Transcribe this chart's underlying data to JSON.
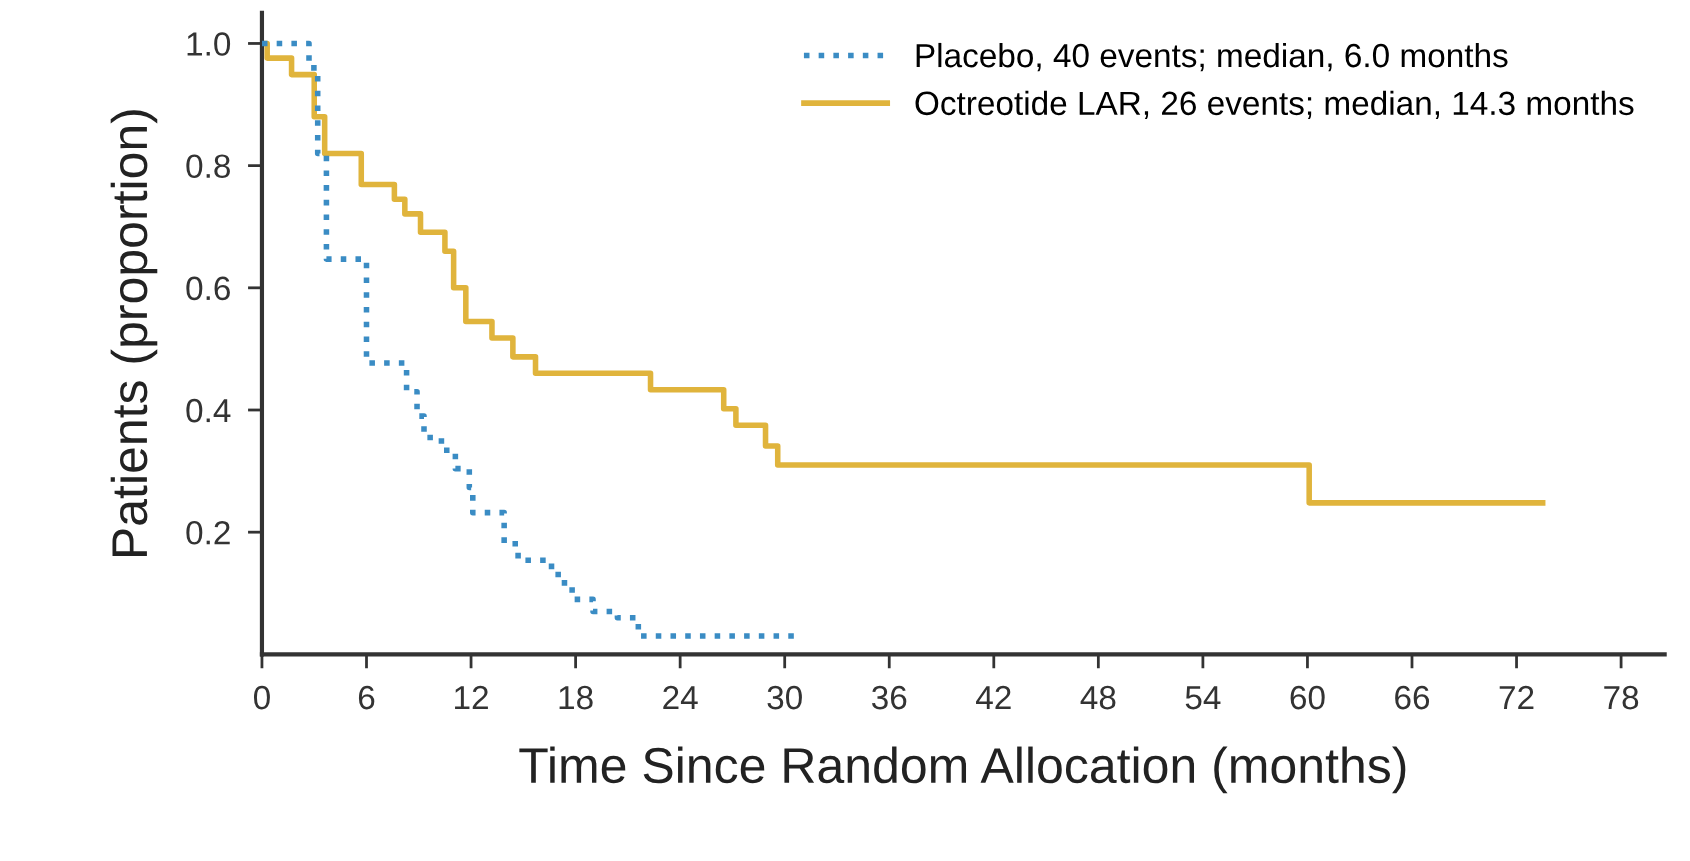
{
  "chart_data": {
    "type": "step",
    "xlabel": "Time Since Random Allocation (months)",
    "ylabel": "Patients (proportion)",
    "xlim": [
      0,
      80.5
    ],
    "ylim": [
      0,
      1.05
    ],
    "xticks": [
      0,
      6,
      12,
      18,
      24,
      30,
      36,
      42,
      48,
      54,
      60,
      66,
      72,
      78
    ],
    "yticks": [
      0.2,
      0.4,
      0.6,
      0.8,
      {
        "value": 1.0,
        "label": "1.0"
      }
    ],
    "grid": false,
    "legend": "top right",
    "series": [
      {
        "name": "Placebo, 40 events; median, 6.0 months",
        "color": "#3a8cc4",
        "line_style": "dotted",
        "x": [
          0,
          2.0,
          2.7,
          3.2,
          3.7,
          5.3,
          6.0,
          8.3,
          8.9,
          9.3,
          10.3,
          11.1,
          11.9,
          12.1,
          13.9,
          14.7,
          16.3,
          17.0,
          17.8,
          19.0,
          20.4,
          21.6,
          30.8
        ],
        "values": [
          1.0,
          1.0,
          0.96,
          0.82,
          0.647,
          0.647,
          0.477,
          0.43,
          0.39,
          0.355,
          0.334,
          0.304,
          0.273,
          0.232,
          0.181,
          0.154,
          0.144,
          0.117,
          0.09,
          0.07,
          0.06,
          0.03,
          0.03
        ]
      },
      {
        "name": "Octreotide LAR, 26 events; median, 14.3 months",
        "color": "#e0b43c",
        "line_style": "solid",
        "x": [
          0,
          0.3,
          1.7,
          3.0,
          3.6,
          5.7,
          7.6,
          8.2,
          9.1,
          10.5,
          11.0,
          11.7,
          13.2,
          14.4,
          15.7,
          22.3,
          26.5,
          27.2,
          28.9,
          29.6,
          60.1,
          73.5
        ],
        "values": [
          1.0,
          0.976,
          0.949,
          0.88,
          0.82,
          0.769,
          0.745,
          0.721,
          0.691,
          0.66,
          0.6,
          0.545,
          0.518,
          0.487,
          0.46,
          0.433,
          0.402,
          0.375,
          0.341,
          0.31,
          0.248,
          0.248
        ]
      }
    ]
  }
}
